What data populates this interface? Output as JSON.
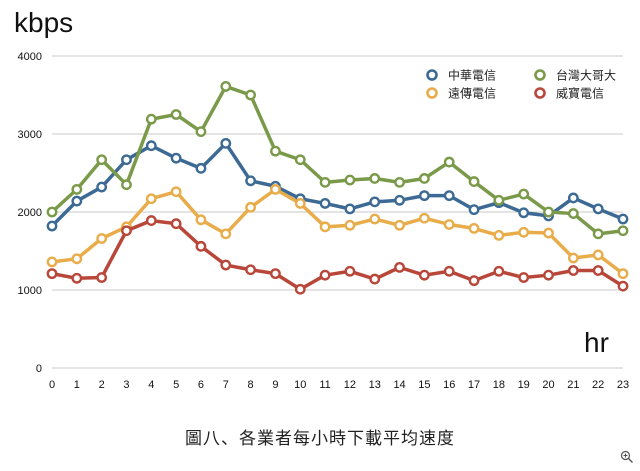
{
  "chart_data": {
    "type": "line",
    "ylabel": "kbps",
    "xlabel": "hr",
    "x": [
      0,
      1,
      2,
      3,
      4,
      5,
      6,
      7,
      8,
      9,
      10,
      11,
      12,
      13,
      14,
      15,
      16,
      17,
      18,
      19,
      20,
      21,
      22,
      23
    ],
    "xlim": [
      0,
      23
    ],
    "ylim": [
      0,
      4000
    ],
    "yticks": [
      0,
      1000,
      2000,
      3000,
      4000
    ],
    "grid": "horizontal",
    "legend_position": "top-right",
    "series": [
      {
        "name": "中華電信",
        "color": "#3c6a94",
        "values": [
          1820,
          2140,
          2320,
          2670,
          2850,
          2690,
          2560,
          2880,
          2400,
          2330,
          2170,
          2110,
          2040,
          2130,
          2150,
          2210,
          2210,
          2030,
          2120,
          1990,
          1950,
          2180,
          2040,
          1910
        ]
      },
      {
        "name": "台灣大哥大",
        "color": "#7a9a4a",
        "values": [
          2000,
          2290,
          2670,
          2350,
          3190,
          3250,
          3030,
          3610,
          3500,
          2780,
          2670,
          2380,
          2410,
          2430,
          2380,
          2430,
          2640,
          2390,
          2150,
          2230,
          2000,
          1980,
          1720,
          1760
        ]
      },
      {
        "name": "遠傳電信",
        "color": "#e8ad4a",
        "values": [
          1360,
          1400,
          1660,
          1810,
          2170,
          2260,
          1900,
          1720,
          2060,
          2290,
          2110,
          1810,
          1830,
          1910,
          1830,
          1920,
          1840,
          1790,
          1700,
          1740,
          1730,
          1410,
          1450,
          1210
        ]
      },
      {
        "name": "威寶電信",
        "color": "#b8473a",
        "values": [
          1210,
          1150,
          1160,
          1760,
          1890,
          1850,
          1560,
          1320,
          1260,
          1210,
          1010,
          1190,
          1240,
          1140,
          1290,
          1190,
          1240,
          1120,
          1240,
          1160,
          1190,
          1250,
          1250,
          1050
        ]
      }
    ]
  },
  "caption": "圖八、各業者每小時下載平均速度",
  "zoom_icon": "zoom-in-icon"
}
